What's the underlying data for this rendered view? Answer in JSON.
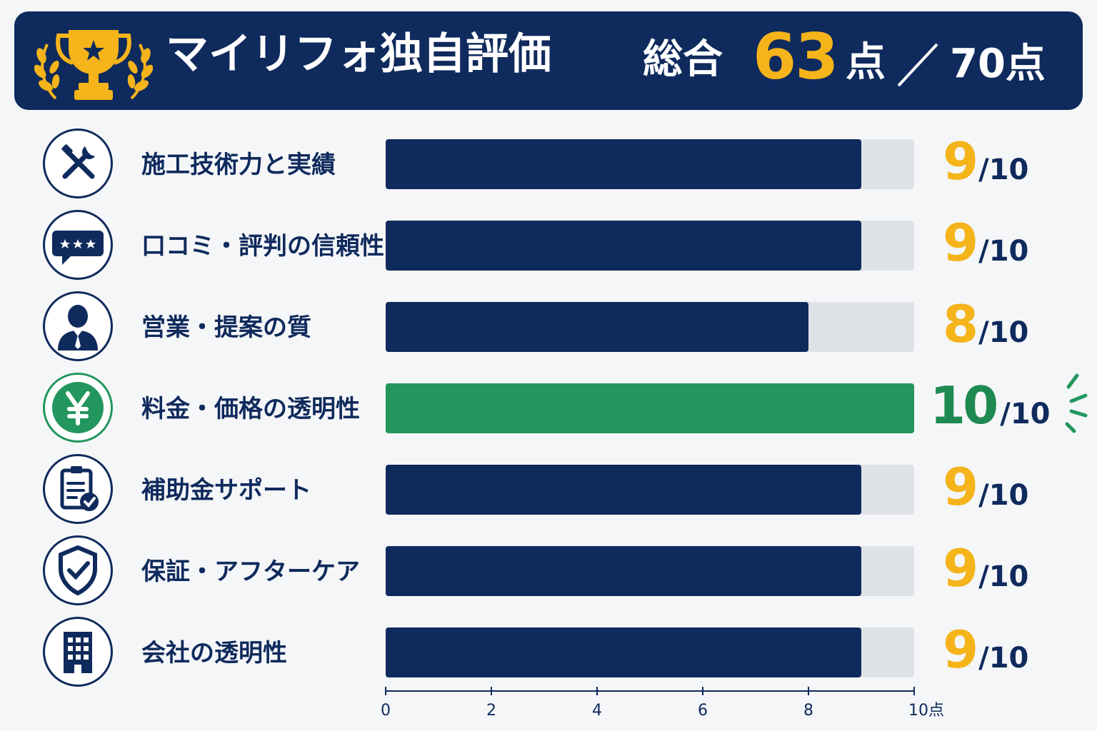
{
  "header": {
    "title": "マイリフォ独自評価",
    "total_label": "総合",
    "total_score": "63",
    "total_unit": "点",
    "total_max": "70点"
  },
  "rows": [
    {
      "label": "施工技術力と実績",
      "icon": "tools-icon",
      "score": "9",
      "max": "/10"
    },
    {
      "label": "口コミ・評判の信頼性",
      "icon": "review-bubble-icon",
      "score": "9",
      "max": "/10"
    },
    {
      "label": "営業・提案の質",
      "icon": "salesperson-icon",
      "score": "8",
      "max": "/10"
    },
    {
      "label": "料金・価格の透明性",
      "icon": "yen-icon",
      "score": "10",
      "max": "/10"
    },
    {
      "label": "補助金サポート",
      "icon": "clipboard-check-icon",
      "score": "9",
      "max": "/10"
    },
    {
      "label": "保証・アフターケア",
      "icon": "shield-check-icon",
      "score": "9",
      "max": "/10"
    },
    {
      "label": "会社の透明性",
      "icon": "building-icon",
      "score": "9",
      "max": "/10"
    }
  ],
  "chart_data": {
    "type": "bar",
    "orientation": "horizontal",
    "categories": [
      "施工技術力と実績",
      "口コミ・評判の信頼性",
      "営業・提案の質",
      "料金・価格の透明性",
      "補助金サポート",
      "保証・アフターケア",
      "会社の透明性"
    ],
    "values": [
      9,
      9,
      8,
      10,
      9,
      9,
      9
    ],
    "xlim": [
      0,
      10
    ],
    "x_ticks": [
      "0",
      "2",
      "4",
      "6",
      "8",
      "10点"
    ],
    "bar_color": "#0f2a5c",
    "highlight_color": "#23965e",
    "track_color": "#dfe2e6",
    "highlight_category": "料金・価格の透明性"
  },
  "colors": {
    "navy": "#0f2a5c",
    "gold": "#f4b41a",
    "green": "#23965e",
    "background": "#f5f6f8"
  }
}
